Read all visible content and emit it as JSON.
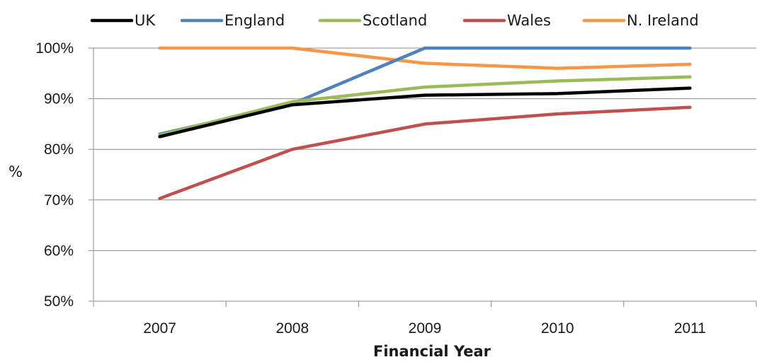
{
  "chart_data": {
    "type": "line",
    "title": "",
    "xlabel": "Financial Year",
    "ylabel": "%",
    "categories": [
      "2007",
      "2008",
      "2009",
      "2010",
      "2011"
    ],
    "ylim": [
      50,
      100
    ],
    "yticks": [
      50,
      60,
      70,
      80,
      90,
      100
    ],
    "ytick_labels": [
      "50%",
      "60%",
      "70%",
      "80%",
      "90%",
      "100%"
    ],
    "grid": "horizontal",
    "legend_position": "top",
    "series": [
      {
        "name": "UK",
        "color": "#000000",
        "values": [
          82.5,
          88.8,
          90.7,
          91.0,
          92.1
        ]
      },
      {
        "name": "England",
        "color": "#4F81BD",
        "values": [
          83.0,
          89.0,
          100,
          100,
          100
        ]
      },
      {
        "name": "Scotland",
        "color": "#9BBB59",
        "values": [
          82.8,
          89.4,
          92.3,
          93.5,
          94.3
        ]
      },
      {
        "name": "Wales",
        "color": "#C0504D",
        "values": [
          70.3,
          80.0,
          85.0,
          87.0,
          88.3
        ]
      },
      {
        "name": "N. Ireland",
        "color": "#F79646",
        "values": [
          100,
          100,
          97.0,
          96.0,
          96.8
        ]
      }
    ]
  }
}
